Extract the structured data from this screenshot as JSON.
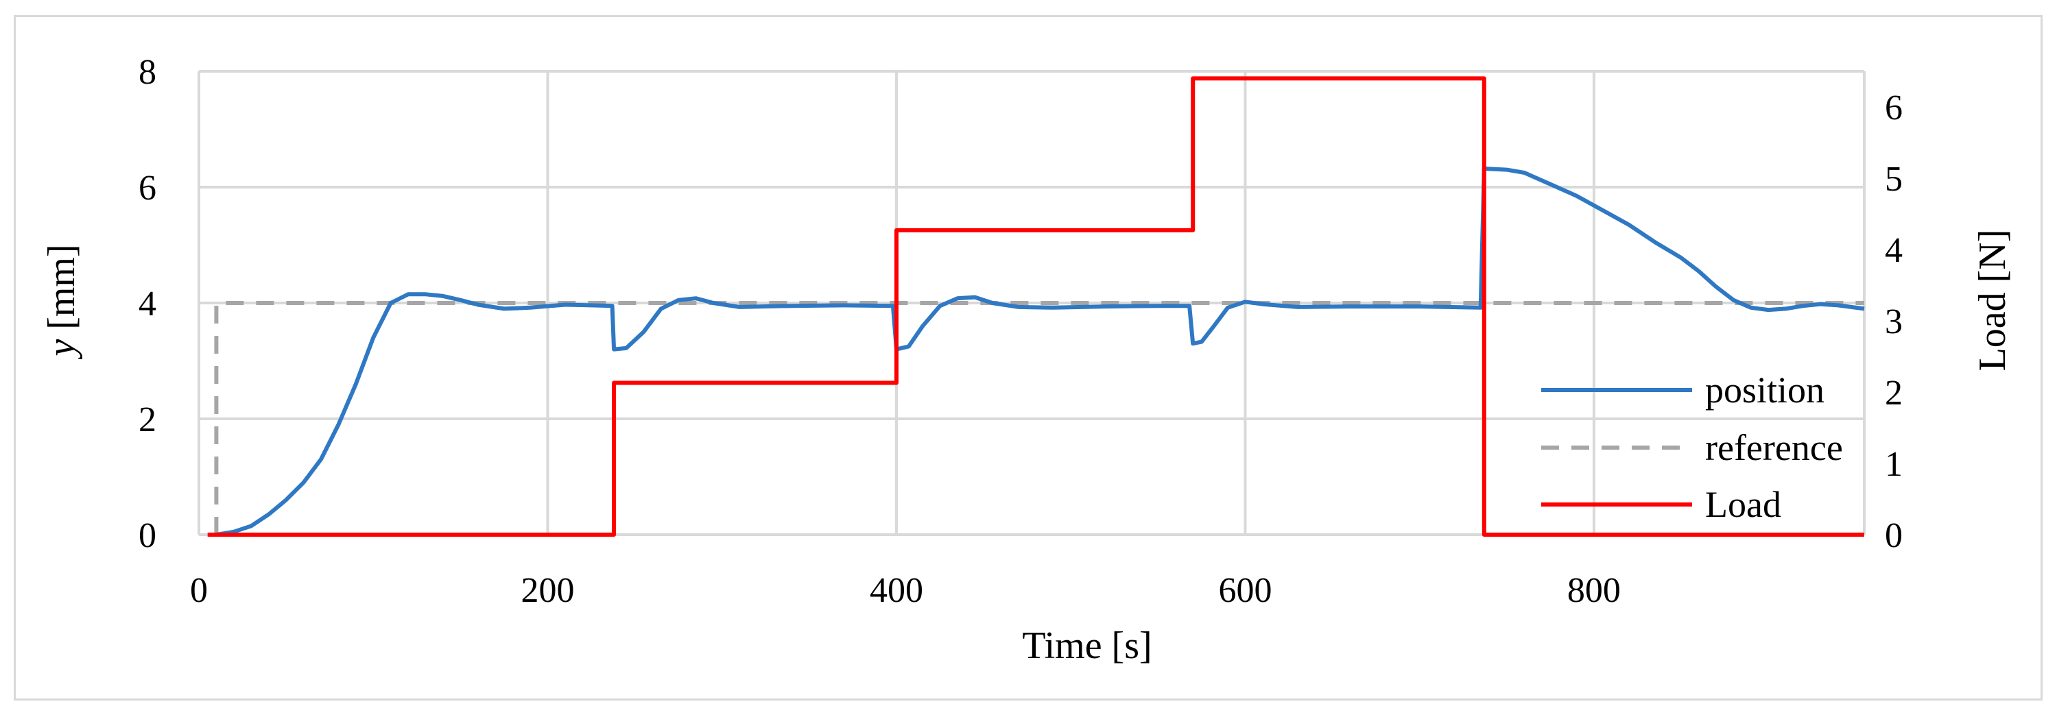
{
  "chart_data": {
    "type": "line",
    "title": "",
    "xlabel": "Time [s]",
    "ylabel_italic": "y",
    "ylabel_rest": " [mm]",
    "y2label": "Load [N]",
    "xlim": [
      0,
      955
    ],
    "ylim": [
      0,
      8
    ],
    "y2lim": [
      0,
      6.5
    ],
    "xticks": [
      0,
      200,
      400,
      600,
      800
    ],
    "yticks": [
      0,
      2,
      4,
      6,
      8
    ],
    "y2ticks": [
      0,
      1,
      2,
      3,
      4,
      5,
      6
    ],
    "grid": true,
    "legend_position": "bottom-right",
    "colors": {
      "position": "#2f78c4",
      "reference": "#a6a6a6",
      "load": "#ff0000",
      "grid": "#d9d9d9"
    },
    "series": [
      {
        "name": "position",
        "axis": "left",
        "style": "solid",
        "points": [
          [
            10,
            0
          ],
          [
            20,
            0.05
          ],
          [
            30,
            0.15
          ],
          [
            40,
            0.35
          ],
          [
            50,
            0.6
          ],
          [
            60,
            0.9
          ],
          [
            70,
            1.3
          ],
          [
            80,
            1.9
          ],
          [
            90,
            2.6
          ],
          [
            100,
            3.4
          ],
          [
            110,
            4.0
          ],
          [
            120,
            4.15
          ],
          [
            130,
            4.15
          ],
          [
            140,
            4.12
          ],
          [
            150,
            4.05
          ],
          [
            160,
            3.97
          ],
          [
            175,
            3.9
          ],
          [
            190,
            3.92
          ],
          [
            210,
            3.97
          ],
          [
            225,
            3.96
          ],
          [
            237,
            3.95
          ],
          [
            238,
            3.2
          ],
          [
            245,
            3.22
          ],
          [
            255,
            3.5
          ],
          [
            265,
            3.9
          ],
          [
            275,
            4.05
          ],
          [
            285,
            4.08
          ],
          [
            295,
            4.0
          ],
          [
            310,
            3.93
          ],
          [
            340,
            3.95
          ],
          [
            370,
            3.96
          ],
          [
            398,
            3.95
          ],
          [
            400,
            3.2
          ],
          [
            407,
            3.25
          ],
          [
            415,
            3.6
          ],
          [
            425,
            3.95
          ],
          [
            435,
            4.08
          ],
          [
            445,
            4.1
          ],
          [
            455,
            4.0
          ],
          [
            470,
            3.93
          ],
          [
            490,
            3.92
          ],
          [
            520,
            3.94
          ],
          [
            550,
            3.95
          ],
          [
            568,
            3.95
          ],
          [
            570,
            3.3
          ],
          [
            575,
            3.33
          ],
          [
            582,
            3.6
          ],
          [
            590,
            3.92
          ],
          [
            600,
            4.02
          ],
          [
            610,
            3.98
          ],
          [
            630,
            3.93
          ],
          [
            660,
            3.94
          ],
          [
            700,
            3.94
          ],
          [
            735,
            3.92
          ],
          [
            737,
            6.32
          ],
          [
            750,
            6.3
          ],
          [
            760,
            6.25
          ],
          [
            775,
            6.05
          ],
          [
            790,
            5.85
          ],
          [
            805,
            5.6
          ],
          [
            820,
            5.35
          ],
          [
            835,
            5.05
          ],
          [
            850,
            4.78
          ],
          [
            860,
            4.55
          ],
          [
            870,
            4.28
          ],
          [
            880,
            4.05
          ],
          [
            890,
            3.92
          ],
          [
            900,
            3.88
          ],
          [
            910,
            3.9
          ],
          [
            920,
            3.95
          ],
          [
            930,
            3.98
          ],
          [
            940,
            3.96
          ],
          [
            955,
            3.9
          ]
        ]
      },
      {
        "name": "reference",
        "axis": "left",
        "style": "dashed",
        "points": [
          [
            10,
            0
          ],
          [
            10,
            4
          ],
          [
            955,
            4
          ]
        ]
      },
      {
        "name": "Load",
        "axis": "right",
        "style": "solid",
        "points": [
          [
            5,
            0
          ],
          [
            238,
            0
          ],
          [
            238,
            2.13
          ],
          [
            400,
            2.13
          ],
          [
            400,
            4.27
          ],
          [
            570,
            4.27
          ],
          [
            570,
            6.4
          ],
          [
            737,
            6.4
          ],
          [
            737,
            0
          ],
          [
            955,
            0
          ]
        ]
      }
    ]
  }
}
